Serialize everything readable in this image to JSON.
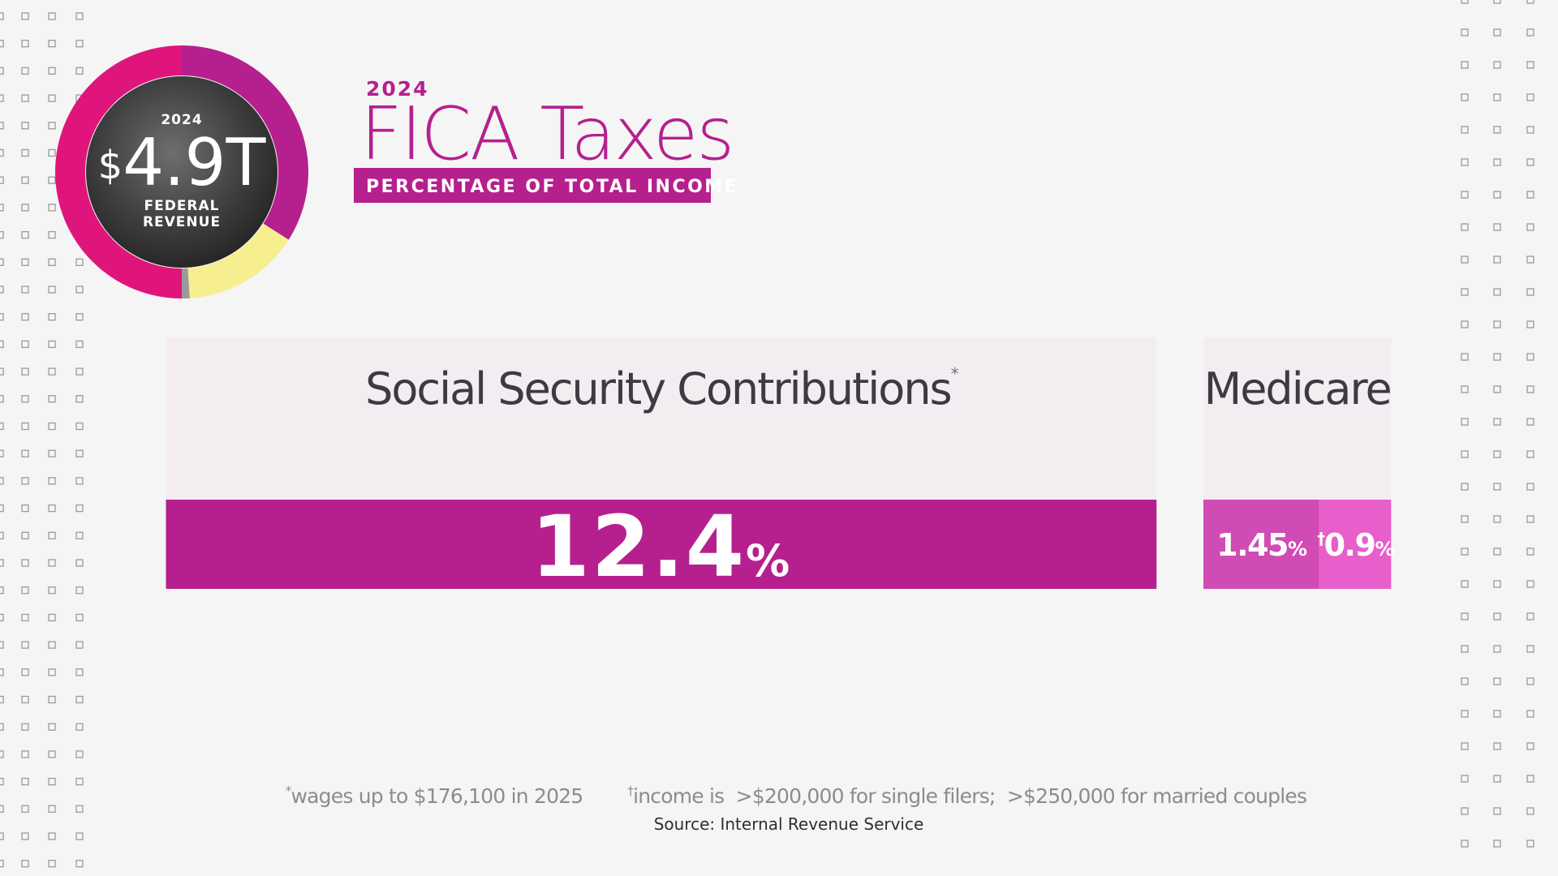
{
  "header": {
    "year": "2024",
    "title": "FICA Taxes",
    "subtitle": "PERCENTAGE OF TOTAL INCOME"
  },
  "badge": {
    "year": "2024",
    "currency": "$",
    "amount": "4.9T",
    "label_1": "FEDERAL",
    "label_2": "REVENUE",
    "donut": [
      {
        "value": 34,
        "color": "#b5208e"
      },
      {
        "value": 15,
        "color": "#f7ee8f"
      },
      {
        "value": 1,
        "color": "#9a9a9a"
      },
      {
        "value": 50,
        "color": "#e0157c"
      }
    ]
  },
  "unit": "%",
  "groups": [
    {
      "name": "Social Security Contributions",
      "note_mark": "*",
      "segments": [
        {
          "value": 12.4,
          "color": "#b5208e"
        }
      ]
    },
    {
      "name": "Medicare",
      "segments": [
        {
          "value": 1.45,
          "color": "#d14bb5"
        },
        {
          "value": 0.9,
          "color": "#e85ecb",
          "note_mark": "†"
        }
      ]
    }
  ],
  "footnotes": [
    {
      "mark": "*",
      "text": "wages up to $176,100 in 2025"
    },
    {
      "mark": "†",
      "text": "income is  >$200,000 for single filers;  >$250,000 for married couples"
    }
  ],
  "source": "Source: Internal Revenue Service"
}
